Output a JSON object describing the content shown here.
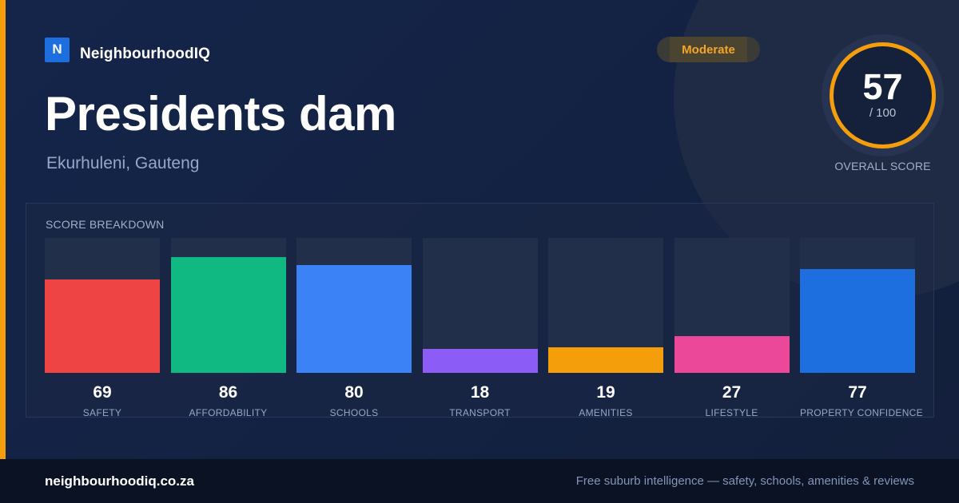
{
  "brand": {
    "logo_letter": "N",
    "name": "NeighbourhoodIQ",
    "logo_color": "#1d6fe0"
  },
  "suburb": {
    "name": "Presidents dam",
    "location": "Ekurhuleni, Gauteng"
  },
  "rating": {
    "label": "Moderate",
    "color": "#f59e0b"
  },
  "overall": {
    "score": "57",
    "max": "/ 100",
    "label": "OVERALL SCORE"
  },
  "breakdown": {
    "title": "SCORE BREAKDOWN",
    "items": [
      {
        "label": "SAFETY",
        "value": 69,
        "color": "#ef4444"
      },
      {
        "label": "AFFORDABILITY",
        "value": 86,
        "color": "#10b981"
      },
      {
        "label": "SCHOOLS",
        "value": 80,
        "color": "#3b82f6"
      },
      {
        "label": "TRANSPORT",
        "value": 18,
        "color": "#8b5cf6"
      },
      {
        "label": "AMENITIES",
        "value": 19,
        "color": "#f59e0b"
      },
      {
        "label": "LIFESTYLE",
        "value": 27,
        "color": "#ec4899"
      },
      {
        "label": "PROPERTY CONFIDENCE",
        "value": 77,
        "color": "#1d6fe0"
      }
    ]
  },
  "footer": {
    "site": "neighbourhoodiq.co.za",
    "tagline": "Free suburb intelligence — safety, schools, amenities & reviews"
  }
}
